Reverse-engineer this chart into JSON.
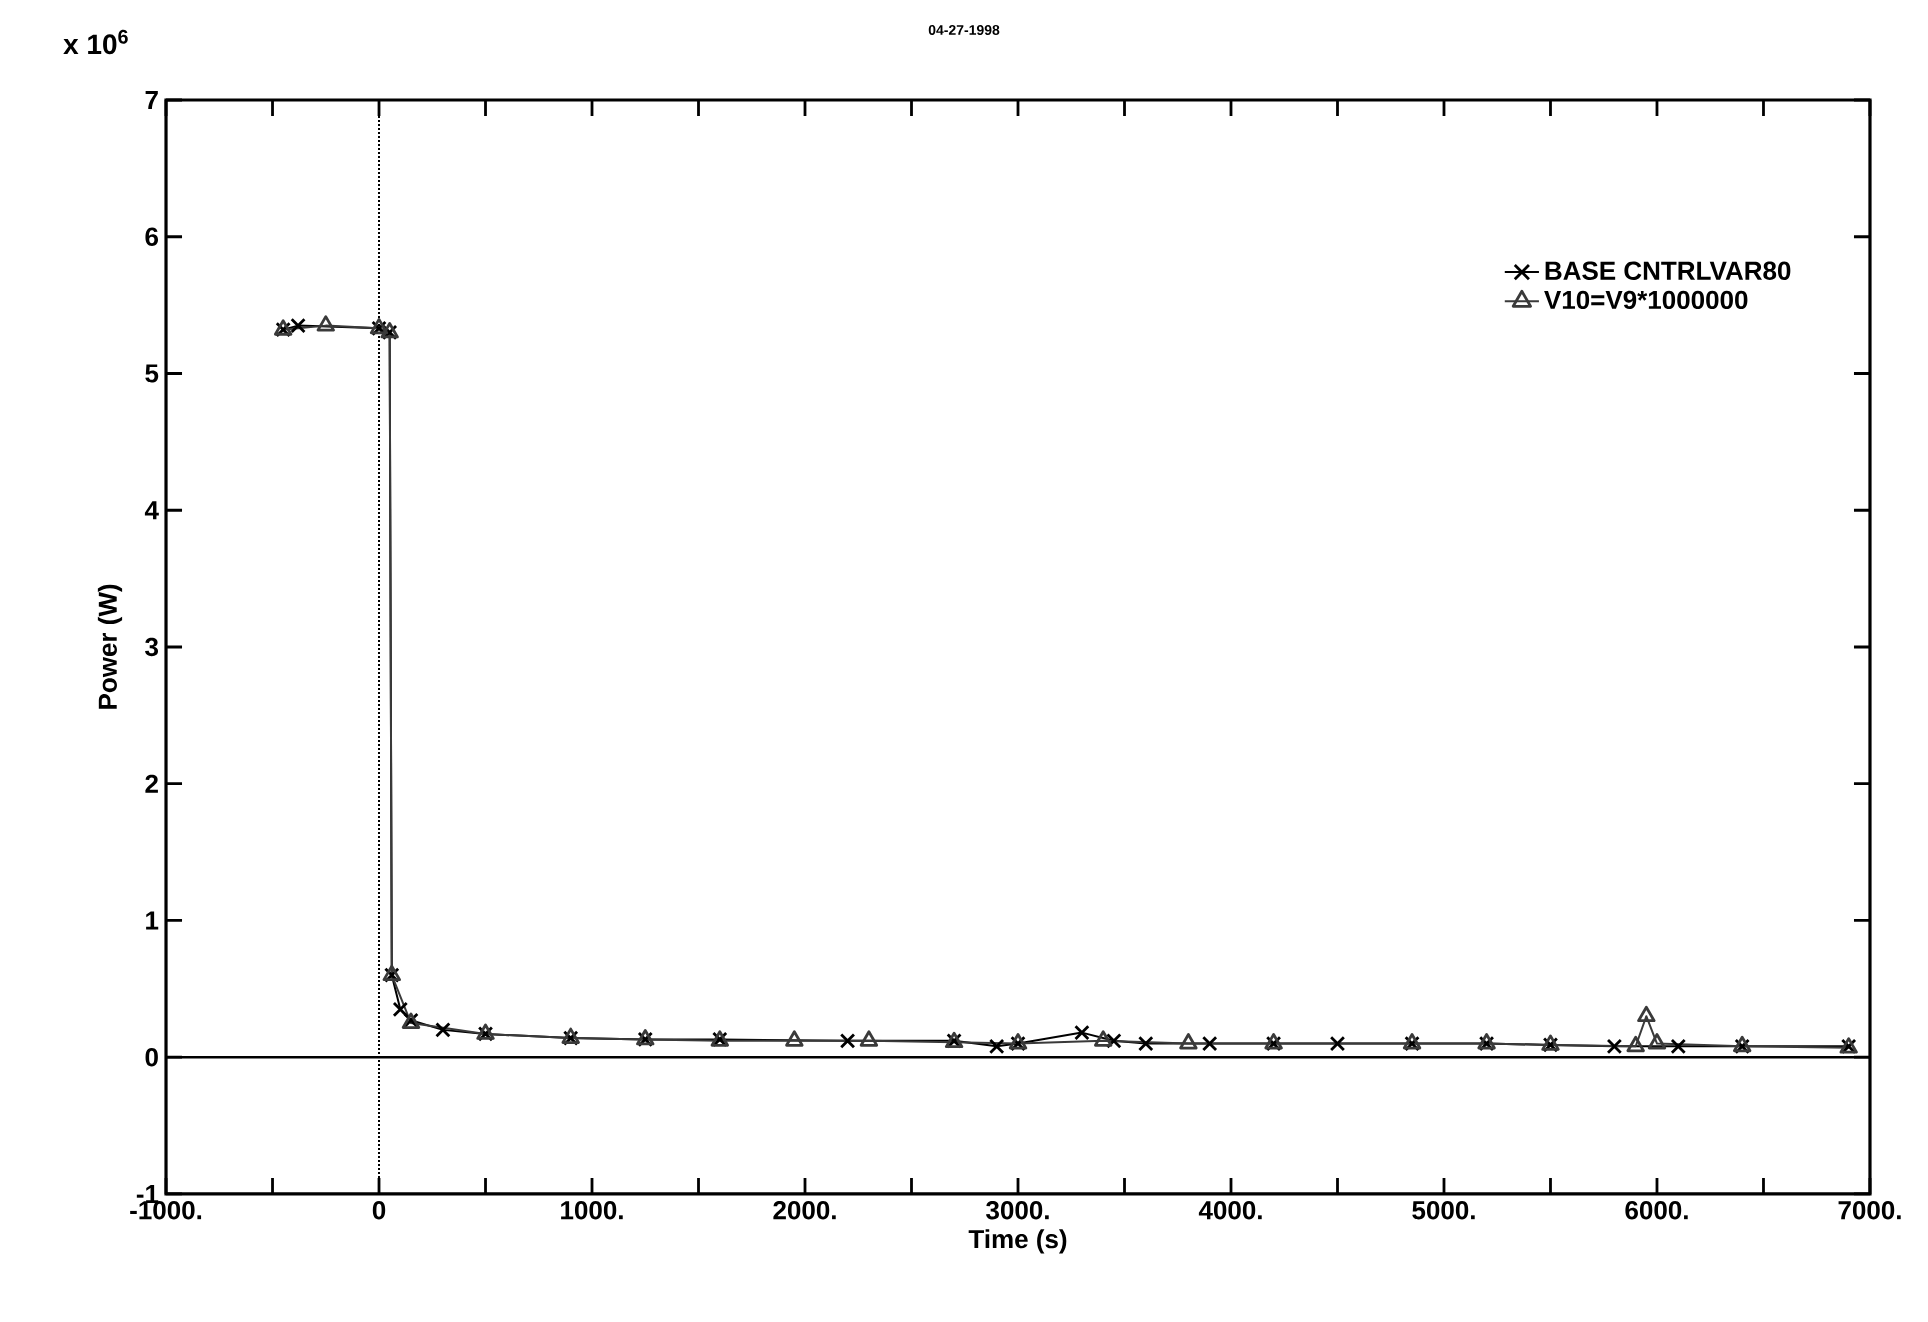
{
  "chart_data": {
    "type": "line",
    "title": "04-27-1998",
    "xlabel": "Time (s)",
    "ylabel": "Power (W)",
    "annotations": [
      "x 10$^{6}$"
    ],
    "xlim": [
      -1000,
      7000
    ],
    "ylim": [
      -1,
      7
    ],
    "xticks": [
      {
        "value": -1000,
        "label": "-1000."
      },
      {
        "value": -500,
        "label": null
      },
      {
        "value": 0,
        "label": "0"
      },
      {
        "value": 500,
        "label": null
      },
      {
        "value": 1000,
        "label": "1000."
      },
      {
        "value": 1500,
        "label": null
      },
      {
        "value": 2000,
        "label": "2000."
      },
      {
        "value": 2500,
        "label": null
      },
      {
        "value": 3000,
        "label": "3000."
      },
      {
        "value": 3500,
        "label": null
      },
      {
        "value": 4000,
        "label": "4000."
      },
      {
        "value": 4500,
        "label": null
      },
      {
        "value": 5000,
        "label": "5000."
      },
      {
        "value": 5500,
        "label": null
      },
      {
        "value": 6000,
        "label": "6000."
      },
      {
        "value": 6500,
        "label": null
      },
      {
        "value": 7000,
        "label": "7000."
      }
    ],
    "yticks": [
      -1,
      0,
      1,
      2,
      3,
      4,
      5,
      6,
      7
    ],
    "grid": false,
    "legend": "top right",
    "line_style": "solid",
    "ref_lines": [
      {
        "axis": "y",
        "value": 0,
        "line_style": "solid"
      },
      {
        "axis": "x",
        "value": 0,
        "line_style": "dotted"
      }
    ],
    "series": [
      {
        "name": "BASE CNTRLVAR80",
        "color": "#000000",
        "marker": "cross",
        "x": [
          -450,
          -380,
          0,
          50,
          60,
          100,
          150,
          300,
          500,
          900,
          1250,
          1600,
          2200,
          2700,
          2900,
          3000,
          3300,
          3450,
          3600,
          3900,
          4200,
          4500,
          4850,
          5200,
          5500,
          5800,
          6100,
          6400,
          6900
        ],
        "values": [
          5.32,
          5.35,
          5.33,
          5.3,
          0.6,
          0.35,
          0.27,
          0.2,
          0.17,
          0.14,
          0.13,
          0.13,
          0.12,
          0.12,
          0.08,
          0.1,
          0.18,
          0.12,
          0.1,
          0.1,
          0.1,
          0.1,
          0.1,
          0.1,
          0.09,
          0.08,
          0.08,
          0.08,
          0.08
        ]
      },
      {
        "name": "V10=V9*1000000",
        "color": "#3a3a3a",
        "marker": "triangle",
        "x": [
          -450,
          -250,
          0,
          50,
          60,
          150,
          500,
          900,
          1250,
          1600,
          1950,
          2300,
          2700,
          3000,
          3400,
          3800,
          4200,
          4850,
          5200,
          5500,
          5900,
          5950,
          6000,
          6400,
          6900
        ],
        "values": [
          5.32,
          5.35,
          5.33,
          5.3,
          0.6,
          0.25,
          0.17,
          0.14,
          0.13,
          0.12,
          0.12,
          0.12,
          0.11,
          0.1,
          0.12,
          0.1,
          0.1,
          0.1,
          0.1,
          0.09,
          0.08,
          0.3,
          0.1,
          0.08,
          0.07
        ]
      }
    ]
  }
}
